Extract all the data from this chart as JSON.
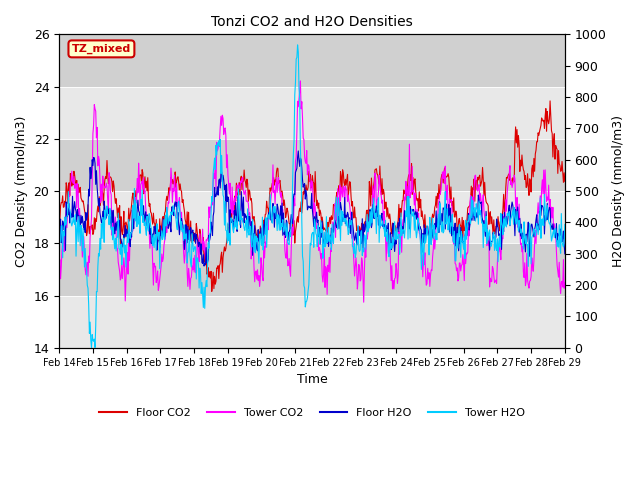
{
  "title": "Tonzi CO2 and H2O Densities",
  "xlabel": "Time",
  "ylabel_left": "CO2 Density (mmol/m3)",
  "ylabel_right": "H2O Density (mmol/m3)",
  "ylim_left": [
    14,
    26
  ],
  "ylim_right": [
    0,
    1000
  ],
  "annotation_text": "TZ_mixed",
  "annotation_color": "#cc0000",
  "annotation_bg": "#ffffcc",
  "annotation_edge": "#cc0000",
  "bg_color": "#ffffff",
  "band_colors": [
    "#e8e8e8",
    "#d0d0d0"
  ],
  "colors": {
    "floor_co2": "#dd0000",
    "tower_co2": "#ff00ff",
    "floor_h2o": "#0000cc",
    "tower_h2o": "#00ccff"
  },
  "legend_labels": [
    "Floor CO2",
    "Tower CO2",
    "Floor H2O",
    "Tower H2O"
  ],
  "xtick_labels": [
    "Feb 14",
    "Feb 15",
    "Feb 16",
    "Feb 17",
    "Feb 18",
    "Feb 19",
    "Feb 20",
    "Feb 21",
    "Feb 22",
    "Feb 23",
    "Feb 24",
    "Feb 25",
    "Feb 26",
    "Feb 27",
    "Feb 28",
    "Feb 29"
  ],
  "num_days": 15,
  "samples_per_day": 48
}
